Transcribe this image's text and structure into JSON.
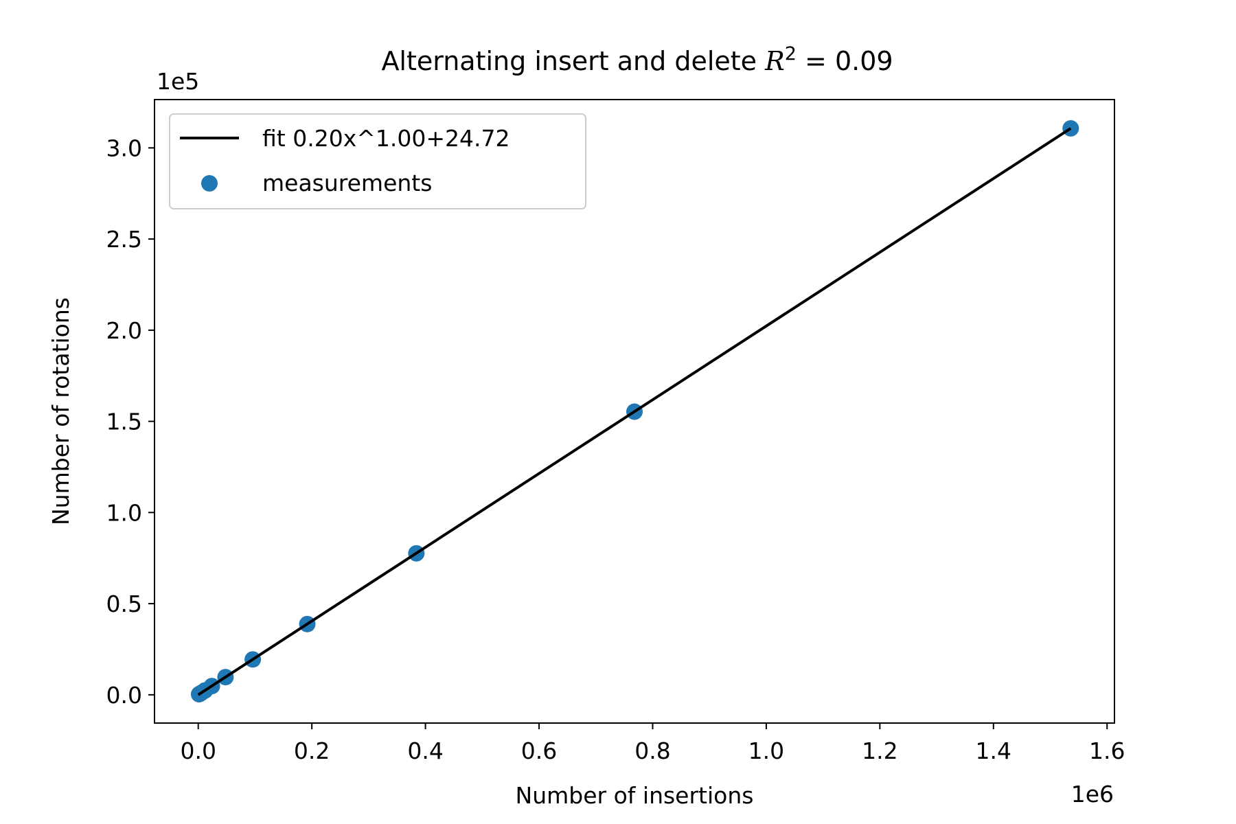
{
  "chart_data": {
    "type": "scatter",
    "title_text": "Alternating insert and delete ",
    "title_r2_value": "0.09",
    "xlabel": "Number of insertions",
    "ylabel": "Number of rotations",
    "x_offset_label": "1e6",
    "y_offset_label": "1e5",
    "xlim": [
      -0.077,
      1.613
    ],
    "ylim": [
      -0.155,
      3.265
    ],
    "x_scale_note": "x values in units of 1e6",
    "y_scale_note": "y values in units of 1e5",
    "x_ticks": [
      0.0,
      0.2,
      0.4,
      0.6,
      0.8,
      1.0,
      1.2,
      1.4,
      1.6
    ],
    "x_tick_labels": [
      "0.0",
      "0.2",
      "0.4",
      "0.6",
      "0.8",
      "1.0",
      "1.2",
      "1.4",
      "1.6"
    ],
    "y_ticks": [
      0.0,
      0.5,
      1.0,
      1.5,
      2.0,
      2.5,
      3.0
    ],
    "y_tick_labels": [
      "0.0",
      "0.5",
      "1.0",
      "1.5",
      "2.0",
      "2.5",
      "3.0"
    ],
    "grid": false,
    "legend_position": "upper-left",
    "series": [
      {
        "name": "fit 0.20x^1.00+24.72",
        "kind": "line",
        "color": "#000000",
        "x": [
          0.0,
          1.536
        ],
        "y": [
          0.0002,
          3.107
        ]
      },
      {
        "name": "measurements",
        "kind": "scatter",
        "color": "#1f77b4",
        "x": [
          0.0015,
          0.003,
          0.006,
          0.012,
          0.024,
          0.048,
          0.096,
          0.192,
          0.384,
          0.768,
          1.536
        ],
        "y": [
          0.003,
          0.006,
          0.012,
          0.024,
          0.048,
          0.097,
          0.194,
          0.388,
          0.776,
          1.553,
          3.107
        ]
      }
    ]
  }
}
